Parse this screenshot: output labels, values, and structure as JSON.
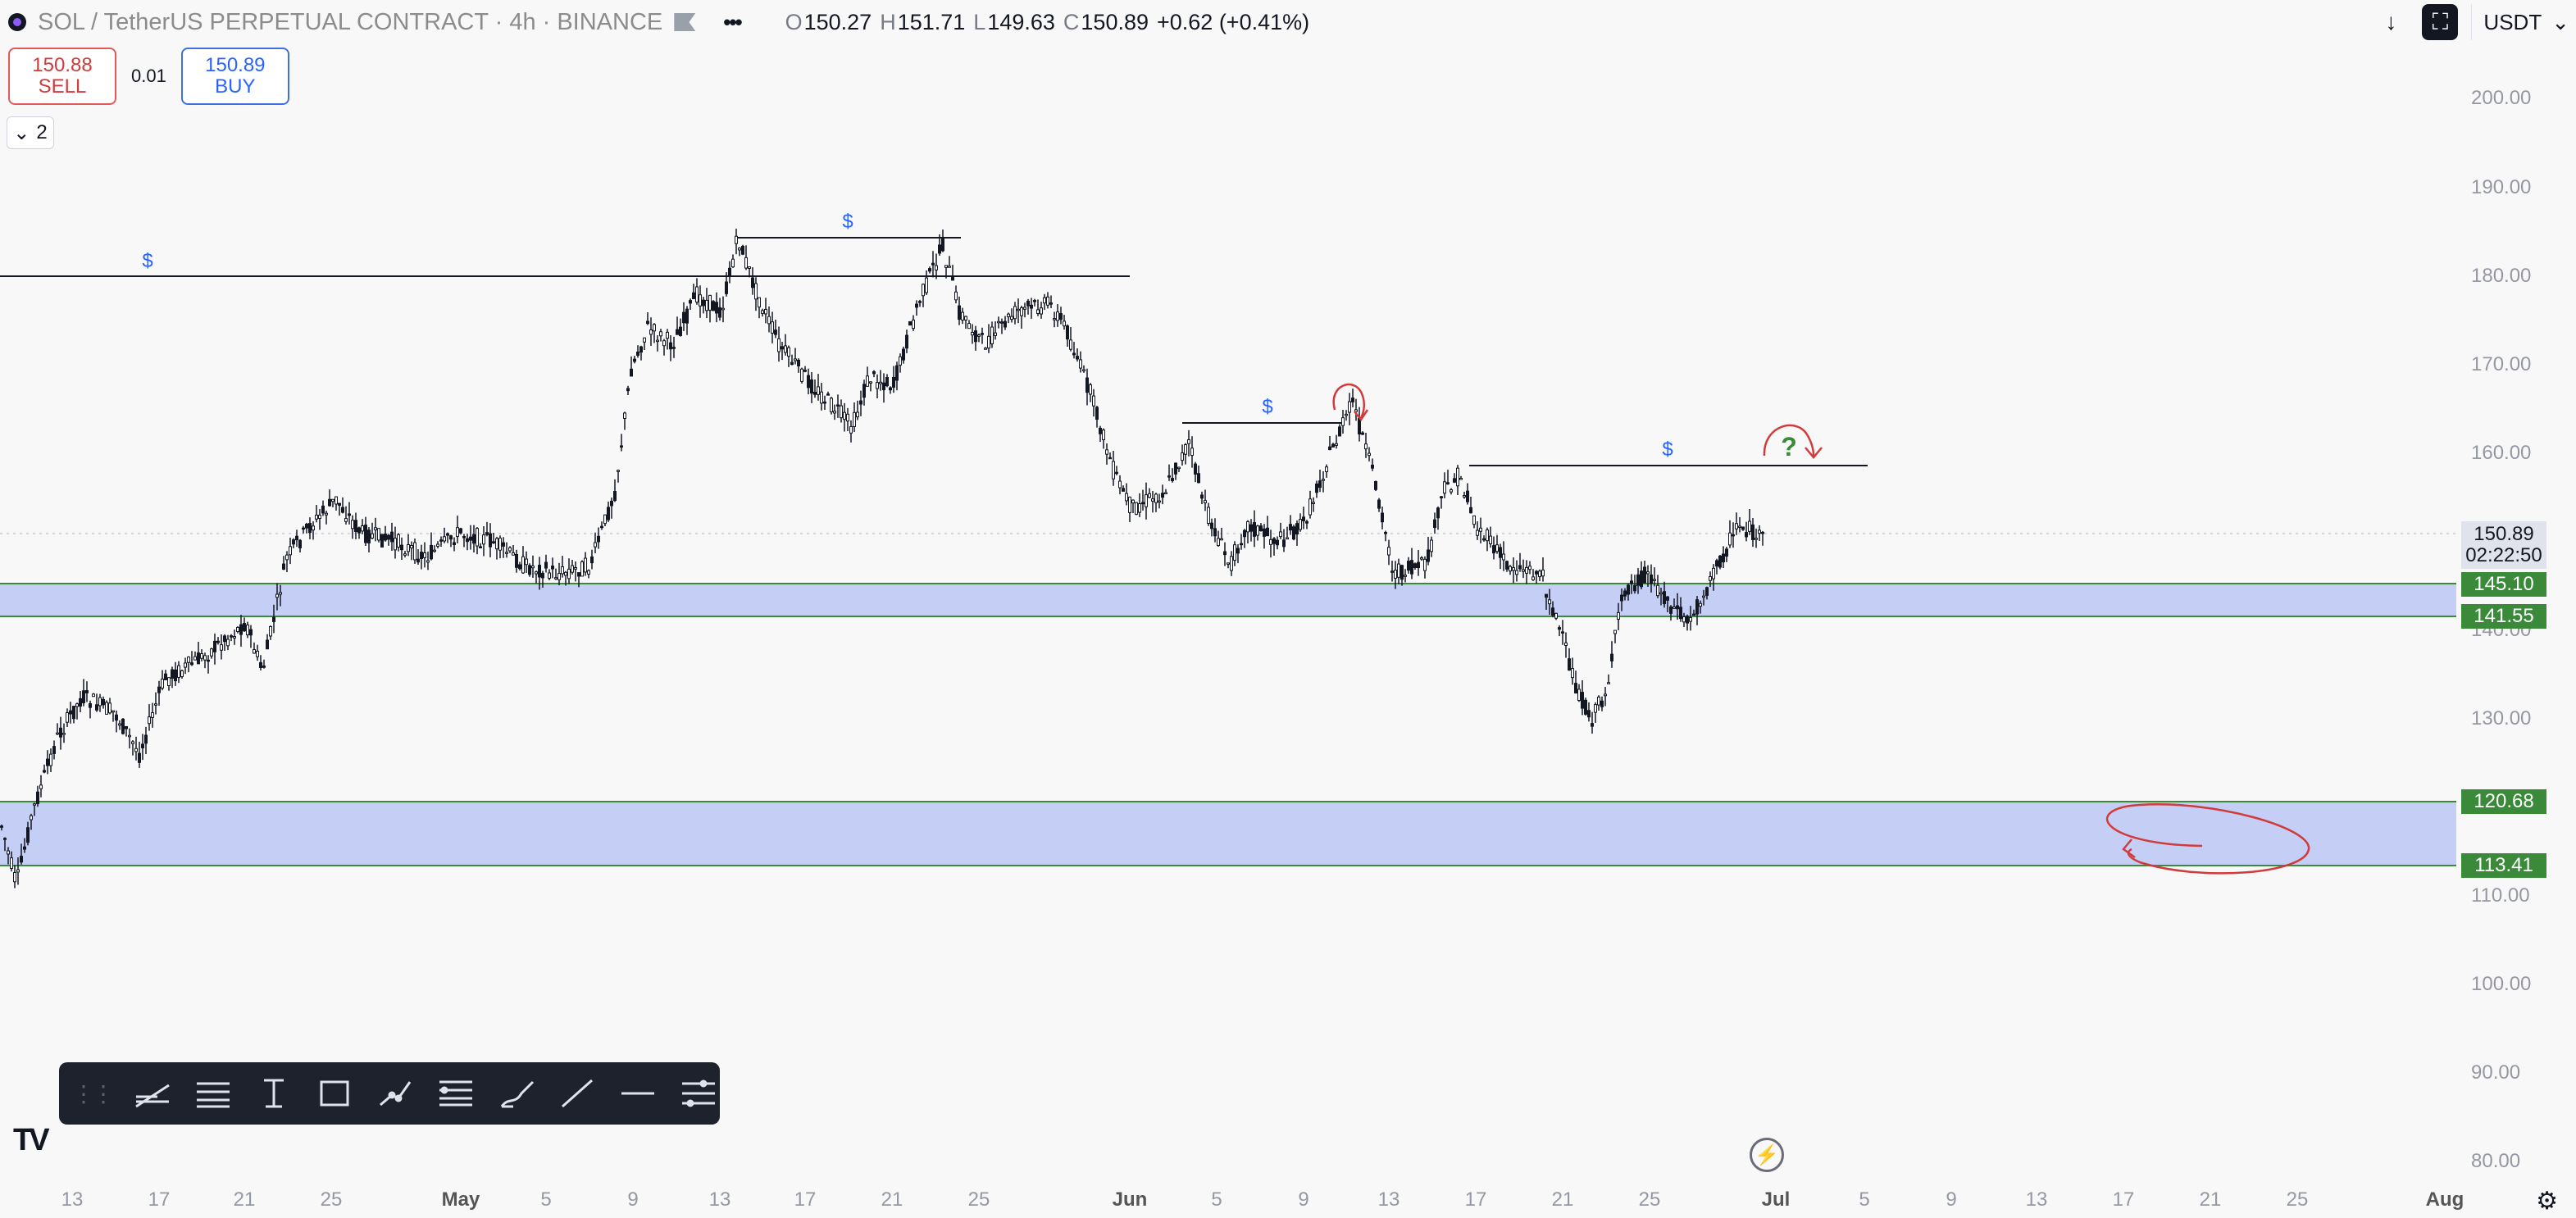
{
  "header": {
    "symbol_title": "SOL / TetherUS PERPETUAL CONTRACT · 4h · BINANCE",
    "open_label": "O",
    "open": "150.27",
    "high_label": "H",
    "high": "151.71",
    "low_label": "L",
    "low": "149.63",
    "close_label": "C",
    "close": "150.89",
    "change": "+0.62 (+0.41%)",
    "more_icon": "more-dots-icon"
  },
  "trade": {
    "sell_price": "150.88",
    "sell_label": "SELL",
    "spread": "0.01",
    "buy_price": "150.89",
    "buy_label": "BUY"
  },
  "collapse": {
    "count": "2"
  },
  "topbar": {
    "currency": "USDT",
    "currency_chevron": "chevron-down-icon"
  },
  "price_axis": {
    "ticks": [
      "200.00",
      "190.00",
      "180.00",
      "170.00",
      "160.00",
      "140.00",
      "130.00",
      "110.00",
      "100.00",
      "90.00",
      "80.00"
    ],
    "current_price": "150.89",
    "countdown": "02:22:50",
    "levels": [
      "145.10",
      "141.55",
      "120.68",
      "113.41"
    ]
  },
  "time_axis": {
    "labels": [
      "13",
      "17",
      "21",
      "25",
      "May",
      "5",
      "9",
      "13",
      "17",
      "21",
      "25",
      "Jun",
      "5",
      "9",
      "13",
      "17",
      "21",
      "25",
      "Jul",
      "5",
      "9",
      "13",
      "17",
      "21",
      "25",
      "Aug"
    ]
  },
  "annotations": {
    "dollar": "$",
    "question": "?"
  },
  "colors": {
    "zone_fill": "#c5cef5",
    "zone_border": "#3a8a3a",
    "level_label_bg": "#3a8a3a",
    "candle": "#131722",
    "annotation_red": "#d13b3b",
    "annotation_blue": "#2962ff"
  },
  "toolbar": {
    "tools": [
      "trend-line-icon",
      "horizontal-lines-icon",
      "text-tool-icon",
      "rectangle-icon",
      "path-icon",
      "fib-icon",
      "brush-icon",
      "ray-icon",
      "horizontal-line-icon",
      "settings-lines-icon"
    ]
  },
  "footer": {
    "logo": "TV",
    "bolt": "⚡",
    "settings": "gear-icon"
  }
}
